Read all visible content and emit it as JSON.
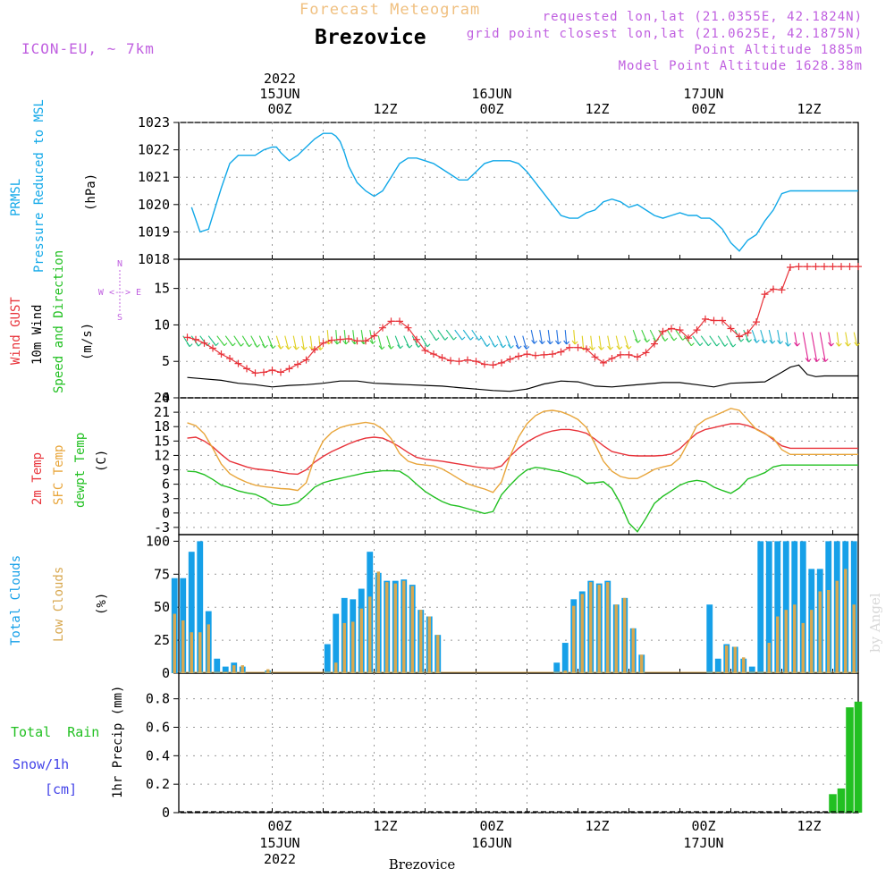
{
  "header": {
    "title": "Forecast Meteogram",
    "location": "Brezovice",
    "model": "ICON-EU, ~ 7km",
    "requested": "requested lon,lat (21.0355E, 42.1824N)",
    "gridpoint": "grid point closest lon,lat (21.0625E, 42.1875N)",
    "point_altitude": "Point Altitude 1885m",
    "model_altitude": "Model Point Altitude 1628.38m",
    "footer": "Brezovice",
    "credit": "by Angel"
  },
  "time_axis": {
    "top_year": "2022",
    "top_days": [
      "15JUN",
      "16JUN",
      "17JUN"
    ],
    "hour_labels": [
      "00Z",
      "12Z",
      "00Z",
      "12Z",
      "00Z",
      "12Z"
    ],
    "bottom_days": [
      "15JUN",
      "16JUN",
      "17JUN"
    ],
    "bottom_year": "2022"
  },
  "colors": {
    "pressure": "#11a8e8",
    "gust": "#e8333a",
    "wind10m": "#000000",
    "t2m": "#e8333a",
    "tsfc": "#e8a53a",
    "dewpt": "#22c022",
    "total_clouds": "#16a0e8",
    "low_clouds": "#d8a850",
    "rain": "#22c022",
    "snow": "#4444e8",
    "header_orange": "#f0c080",
    "header_purple": "#c060e0"
  },
  "chart_data": [
    {
      "type": "line",
      "name": "pressure",
      "ylabel_lines": [
        "PRMSL",
        "Pressure Reduced to MSL"
      ],
      "unit": "(hPa)",
      "ylim": [
        1018,
        1023
      ],
      "yticks": [
        "1018",
        "1019",
        "1020",
        "1021",
        "1022",
        "1023"
      ],
      "x_hours": [
        -19,
        -17,
        -15,
        -14,
        -12,
        -10,
        -8,
        -6,
        -4,
        -2,
        0,
        1,
        2,
        4,
        6,
        8,
        10,
        12,
        13,
        14,
        15,
        16,
        17,
        18,
        20,
        22,
        24,
        26,
        28,
        30,
        32,
        34,
        36,
        38,
        40,
        42,
        44,
        46,
        48,
        50,
        52,
        54,
        56,
        58,
        60,
        62,
        64,
        66,
        68,
        70,
        72,
        74,
        76,
        78,
        80,
        82,
        84,
        86,
        88,
        90,
        92,
        94,
        96,
        98,
        100,
        101,
        102,
        103,
        104,
        106,
        108,
        110,
        112,
        114,
        116,
        118,
        120,
        122,
        124,
        126,
        128,
        130,
        132,
        134,
        136,
        137,
        138
      ],
      "series": [
        {
          "values": [
            1019.9,
            1019.0,
            1019.1,
            1019.6,
            1020.6,
            1021.5,
            1021.8,
            1021.8,
            1021.8,
            1022.0,
            1022.1,
            1022.1,
            1021.9,
            1021.6,
            1021.8,
            1022.1,
            1022.4,
            1022.6,
            1022.6,
            1022.6,
            1022.5,
            1022.3,
            1021.9,
            1021.4,
            1020.8,
            1020.5,
            1020.3,
            1020.5,
            1021.0,
            1021.5,
            1021.7,
            1021.7,
            1021.6,
            1021.5,
            1021.3,
            1021.1,
            1020.9,
            1020.9,
            1021.2,
            1021.5,
            1021.6,
            1021.6,
            1021.6,
            1021.5,
            1021.2,
            1020.8,
            1020.4,
            1020.0,
            1019.6,
            1019.5,
            1019.5,
            1019.7,
            1019.8,
            1020.1,
            1020.2,
            1020.1,
            1019.9,
            1020.0,
            1019.8,
            1019.6,
            1019.5,
            1019.6,
            1019.7,
            1019.6,
            1019.6,
            1019.5,
            1019.5,
            1019.5,
            1019.4,
            1019.1,
            1018.6,
            1018.3,
            1018.7,
            1018.9,
            1019.4,
            1019.8,
            1020.4,
            1020.5,
            1020.5,
            1020.5,
            1020.5,
            1020.5,
            1020.5,
            1020.5,
            1020.5,
            1020.5,
            1020.5
          ]
        }
      ]
    },
    {
      "type": "line",
      "name": "wind",
      "ylabel_lines": [
        "Wind GUST",
        "10m Wind",
        "Speed and Direction"
      ],
      "unit": "(m/s)",
      "ylim": [
        0,
        19
      ],
      "yticks": [
        "0",
        "5",
        "10",
        "15"
      ],
      "compass": [
        "N",
        "W <--> E",
        "S"
      ],
      "gust_hours": [
        -20,
        -18,
        -16,
        -14,
        -12,
        -10,
        -8,
        -6,
        -4,
        -2,
        0,
        2,
        4,
        6,
        8,
        10,
        12,
        14,
        16,
        18,
        20,
        22,
        24,
        26,
        28,
        30,
        32,
        34,
        36,
        38,
        40,
        42,
        44,
        46,
        48,
        50,
        52,
        54,
        56,
        58,
        60,
        62,
        64,
        66,
        68,
        70,
        72,
        74,
        76,
        78,
        80,
        82,
        84,
        86,
        88,
        90,
        92,
        94,
        96,
        98,
        100,
        102,
        104,
        106,
        108,
        110,
        112,
        114,
        116,
        118,
        120,
        122,
        124,
        126,
        128,
        130,
        132,
        134,
        136,
        138
      ],
      "gust": [
        8.3,
        8.0,
        7.5,
        6.8,
        6.0,
        5.4,
        4.7,
        4.0,
        3.4,
        3.5,
        3.8,
        3.5,
        4.0,
        4.6,
        5.2,
        6.6,
        7.5,
        7.9,
        8.0,
        8.1,
        7.8,
        7.8,
        8.5,
        9.6,
        10.5,
        10.5,
        9.6,
        8.0,
        6.5,
        6.0,
        5.5,
        5.1,
        5.0,
        5.2,
        5.0,
        4.6,
        4.5,
        4.8,
        5.3,
        5.7,
        6.0,
        5.8,
        5.9,
        6.0,
        6.3,
        6.9,
        6.9,
        6.7,
        5.6,
        4.8,
        5.4,
        5.9,
        5.9,
        5.6,
        6.2,
        7.4,
        9.1,
        9.5,
        9.3,
        8.2,
        9.3,
        10.8,
        10.6,
        10.6,
        9.5,
        8.4,
        8.9,
        10.4,
        14.2,
        14.9,
        14.8,
        17.9,
        18,
        18,
        18,
        18,
        18,
        18,
        18,
        18
      ],
      "wind_hours": [
        -20,
        -16,
        -12,
        -8,
        -4,
        0,
        4,
        8,
        12,
        16,
        20,
        24,
        28,
        32,
        36,
        40,
        44,
        48,
        52,
        56,
        60,
        64,
        68,
        72,
        76,
        80,
        84,
        88,
        92,
        96,
        100,
        104,
        108,
        112,
        116,
        120,
        122,
        124,
        126,
        128,
        130,
        132,
        134,
        136,
        138
      ],
      "wind": [
        2.8,
        2.6,
        2.4,
        2.0,
        1.8,
        1.5,
        1.7,
        1.8,
        2.0,
        2.3,
        2.3,
        2.0,
        1.9,
        1.8,
        1.7,
        1.6,
        1.4,
        1.2,
        1.0,
        0.9,
        1.2,
        1.9,
        2.3,
        2.2,
        1.6,
        1.5,
        1.7,
        1.9,
        2.1,
        2.1,
        1.8,
        1.5,
        2.0,
        2.1,
        2.2,
        3.5,
        4.2,
        4.5,
        3.2,
        2.9,
        3.0,
        3.0,
        3.0,
        3.0,
        3.0
      ]
    },
    {
      "type": "line",
      "name": "temperature",
      "ylabel_lines": [
        "2m Temp",
        "SFC Temp",
        "dewpt Temp"
      ],
      "unit": "(C)",
      "ylim": [
        -4.5,
        24
      ],
      "yticks": [
        "-3",
        "0",
        "3",
        "6",
        "9",
        "12",
        "15",
        "18",
        "21",
        "24"
      ],
      "x_hours": [
        -20,
        -18,
        -16,
        -14,
        -12,
        -10,
        -8,
        -6,
        -4,
        -2,
        0,
        2,
        4,
        6,
        8,
        10,
        12,
        14,
        16,
        18,
        20,
        22,
        24,
        26,
        28,
        30,
        32,
        34,
        36,
        38,
        40,
        42,
        44,
        46,
        48,
        50,
        52,
        54,
        56,
        58,
        60,
        62,
        64,
        66,
        68,
        70,
        72,
        74,
        76,
        78,
        80,
        82,
        84,
        86,
        88,
        90,
        92,
        94,
        96,
        98,
        100,
        102,
        104,
        106,
        108,
        110,
        112,
        114,
        116,
        118,
        120,
        122,
        124,
        126,
        128,
        130,
        132,
        134,
        136,
        138
      ],
      "series": [
        {
          "key": "t2m",
          "values": [
            15.6,
            15.8,
            15.0,
            13.8,
            12.2,
            10.8,
            10.2,
            9.6,
            9.2,
            9.0,
            8.8,
            8.5,
            8.2,
            8.1,
            9.0,
            10.6,
            11.8,
            12.8,
            13.6,
            14.4,
            15.1,
            15.6,
            15.8,
            15.6,
            14.8,
            13.8,
            12.6,
            11.6,
            11.2,
            11.0,
            10.8,
            10.5,
            10.2,
            9.9,
            9.6,
            9.4,
            9.3,
            9.8,
            11.8,
            13.5,
            14.8,
            15.8,
            16.6,
            17.1,
            17.4,
            17.4,
            17.1,
            16.6,
            15.4,
            14.0,
            12.8,
            12.4,
            12.0,
            11.9,
            11.9,
            11.9,
            12.0,
            12.3,
            13.4,
            15.1,
            16.6,
            17.4,
            17.8,
            18.2,
            18.6,
            18.6,
            18.2,
            17.5,
            16.6,
            15.3,
            14.0,
            13.5,
            13.5,
            13.5,
            13.5,
            13.5,
            13.5,
            13.5,
            13.5,
            13.5
          ]
        },
        {
          "key": "tsfc",
          "values": [
            18.8,
            18.2,
            16.5,
            13.5,
            10.2,
            8.2,
            7.2,
            6.4,
            5.8,
            5.5,
            5.3,
            5.1,
            5.0,
            4.7,
            6.3,
            11.5,
            15.0,
            16.8,
            17.8,
            18.3,
            18.6,
            18.9,
            18.6,
            17.5,
            15.5,
            12.4,
            10.8,
            10.2,
            10.0,
            9.8,
            9.2,
            8.2,
            7.1,
            6.1,
            5.5,
            5.0,
            4.3,
            6.5,
            11.8,
            15.8,
            18.6,
            20.3,
            21.2,
            21.4,
            21.1,
            20.4,
            19.5,
            17.8,
            14.4,
            10.8,
            8.7,
            7.6,
            7.2,
            7.2,
            8.1,
            9.1,
            9.6,
            10.0,
            11.5,
            14.8,
            18.2,
            19.5,
            20.2,
            21.0,
            21.8,
            21.4,
            19.4,
            17.4,
            16.5,
            15.6,
            13.2,
            12.2,
            12.2,
            12.2,
            12.2,
            12.2,
            12.2,
            12.2,
            12.2,
            12.2
          ]
        },
        {
          "key": "dewpt",
          "values": [
            8.7,
            8.6,
            8.0,
            7.0,
            5.8,
            5.3,
            4.6,
            4.2,
            3.9,
            3.1,
            1.9,
            1.6,
            1.7,
            2.2,
            3.7,
            5.4,
            6.3,
            6.8,
            7.2,
            7.6,
            8.0,
            8.4,
            8.6,
            8.8,
            8.8,
            8.7,
            7.6,
            6.0,
            4.5,
            3.4,
            2.4,
            1.7,
            1.4,
            0.9,
            0.4,
            -0.1,
            0.3,
            3.8,
            5.8,
            7.6,
            9.0,
            9.5,
            9.3,
            8.9,
            8.6,
            8.0,
            7.4,
            6.2,
            6.3,
            6.5,
            5.1,
            2.0,
            -2.1,
            -3.9,
            -1.1,
            2.0,
            3.5,
            4.6,
            5.8,
            6.5,
            6.8,
            6.5,
            5.4,
            4.7,
            4.1,
            5.2,
            7.1,
            7.7,
            8.4,
            9.6,
            10.0,
            10.0,
            10.0,
            10.0,
            10.0,
            10.0,
            10.0,
            10.0,
            10.0,
            10.0
          ]
        }
      ]
    },
    {
      "type": "bar",
      "name": "clouds",
      "ylabel_lines": [
        "Total Clouds",
        "Low Clouds"
      ],
      "unit": "(%)",
      "ylim": [
        0,
        105
      ],
      "yticks": [
        "0",
        "25",
        "50",
        "75",
        "100"
      ],
      "x_hours": [
        -23,
        -21,
        -19,
        -17,
        -15,
        -13,
        -11,
        -9,
        -7,
        -5,
        -3,
        -1,
        1,
        3,
        5,
        7,
        9,
        11,
        13,
        15,
        17,
        19,
        21,
        23,
        25,
        27,
        29,
        31,
        33,
        35,
        37,
        39,
        41,
        43,
        45,
        47,
        49,
        51,
        53,
        55,
        57,
        59,
        61,
        63,
        65,
        67,
        69,
        71,
        73,
        75,
        77,
        79,
        81,
        83,
        85,
        87,
        89,
        91,
        93,
        95,
        97,
        99,
        101,
        103,
        105,
        107,
        109,
        111,
        113,
        115,
        117,
        119,
        121,
        123,
        125,
        127,
        129,
        131,
        133,
        135,
        137
      ],
      "total": [
        72,
        72,
        92,
        100,
        47,
        11,
        5,
        8,
        5,
        0,
        0,
        2,
        0,
        0,
        0,
        0,
        0,
        0,
        22,
        45,
        57,
        56,
        64,
        92,
        76,
        70,
        70,
        71,
        67,
        48,
        43,
        29,
        0,
        0,
        0,
        0,
        0,
        0,
        0,
        0,
        0,
        0,
        0,
        0,
        0,
        8,
        23,
        56,
        62,
        70,
        68,
        70,
        52,
        57,
        34,
        14,
        0,
        0,
        0,
        0,
        0,
        0,
        0,
        52,
        11,
        22,
        20,
        11,
        5,
        100,
        100,
        100,
        100,
        100,
        100,
        79,
        79,
        100,
        100,
        100,
        100
      ],
      "low": [
        45,
        40,
        31,
        31,
        37,
        0,
        1,
        6,
        6,
        0,
        0,
        3,
        0,
        0,
        0,
        0,
        0,
        0,
        0,
        8,
        38,
        39,
        49,
        58,
        77,
        69,
        68,
        70,
        66,
        48,
        43,
        29,
        0,
        0,
        0,
        0,
        0,
        0,
        0,
        0,
        0,
        0,
        0,
        0,
        0,
        0,
        2,
        51,
        60,
        69,
        67,
        69,
        52,
        57,
        34,
        14,
        0,
        0,
        0,
        0,
        0,
        0,
        0,
        0,
        1,
        21,
        20,
        12,
        0,
        0,
        23,
        43,
        48,
        52,
        38,
        48,
        62,
        63,
        70,
        79,
        52
      ]
    },
    {
      "type": "bar",
      "name": "precip",
      "ylabel_lines": [
        "Total  Rain",
        "Snow/1h",
        "[cm]"
      ],
      "unit": "1hr Precip (mm)",
      "ylim": [
        0,
        0.98
      ],
      "yticks": [
        "0",
        "0.2",
        "0.4",
        "0.6",
        "0.8"
      ],
      "x_hours": [
        130,
        132,
        134,
        136,
        138
      ],
      "rain": [
        0.0,
        0.13,
        0.17,
        0.74,
        0.78
      ]
    }
  ]
}
